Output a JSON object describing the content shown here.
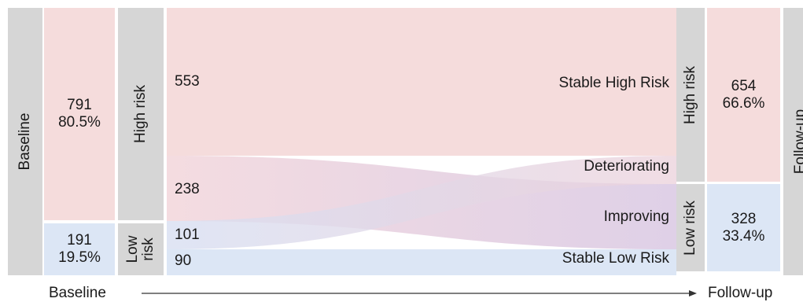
{
  "baseline_bar_label": "Baseline",
  "followup_bar_label": "Follow-up",
  "baseline_high": {
    "count": "791",
    "pct": "80.5%",
    "label": "High risk"
  },
  "baseline_low": {
    "count": "191",
    "pct": "19.5%",
    "label_line1": "Low",
    "label_line2": "risk"
  },
  "followup_high": {
    "count": "654",
    "pct": "66.6%",
    "label": "High risk"
  },
  "followup_low": {
    "count": "328",
    "pct": "33.4%",
    "label": "Low risk"
  },
  "flow_values": {
    "stable_high": "553",
    "deteriorating_from_high": "238",
    "improving_from_low": "101",
    "stable_low": "90"
  },
  "flow_names": {
    "stable_high": "Stable High Risk",
    "deteriorating": "Deteriorating",
    "improving": "Improving",
    "stable_low": "Stable Low Risk"
  },
  "axis": {
    "left": "Baseline",
    "right": "Follow-up"
  },
  "colors": {
    "high": "#f5dcdc",
    "low": "#dce6f5",
    "gray": "#d6d6d6",
    "cross_high": "#e8c8d8",
    "cross_low": "#cdd3ea"
  }
}
